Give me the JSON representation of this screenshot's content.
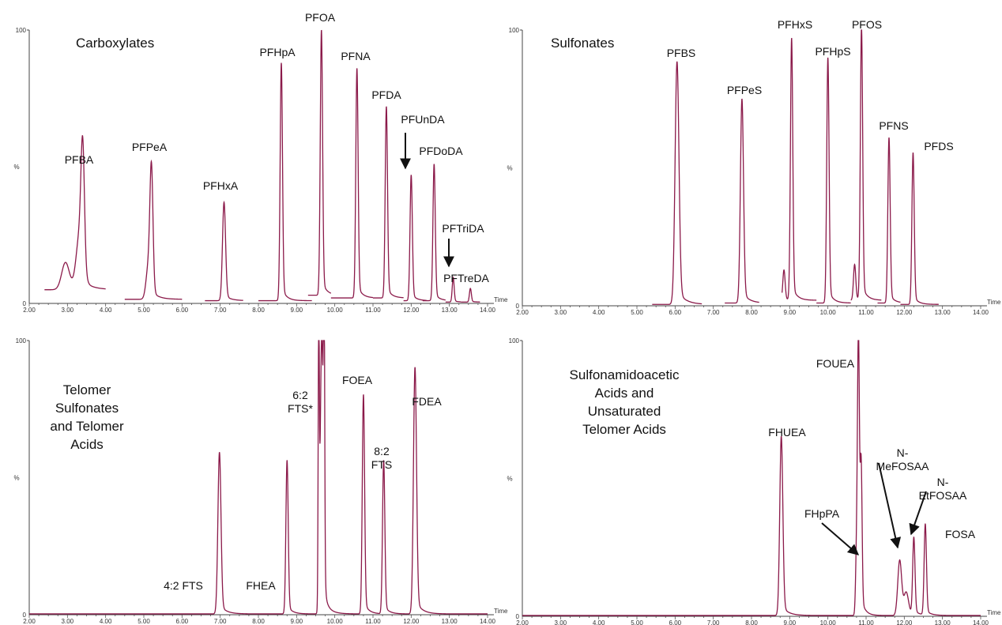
{
  "chart_data": [
    {
      "type": "line",
      "title": "Carboxylates",
      "xlabel": "Time",
      "ylabel": "%",
      "xlim": [
        2.0,
        14.0
      ],
      "ylim": [
        0,
        100
      ],
      "xticks": [
        "2.00",
        "3.00",
        "4.00",
        "5.00",
        "6.00",
        "7.00",
        "8.00",
        "9.00",
        "10.00",
        "11.00",
        "12.00",
        "13.00",
        "14.00"
      ],
      "yticks": [
        "0",
        "100"
      ],
      "line_color": "#8b1a4a",
      "segments": [
        {
          "start": 2.4,
          "end": 4.0,
          "baseline": 5,
          "peaks": [
            {
              "t": 2.95,
              "h": 10,
              "w": 0.1
            },
            {
              "t": 3.32,
              "h": 20,
              "w": 0.09
            },
            {
              "t": 3.4,
              "h": 42,
              "w": 0.045
            }
          ]
        },
        {
          "start": 4.5,
          "end": 6.0,
          "baseline": 1.5,
          "peaks": [
            {
              "t": 5.12,
              "h": 12,
              "w": 0.06
            },
            {
              "t": 5.2,
              "h": 45,
              "w": 0.04
            }
          ]
        },
        {
          "start": 6.6,
          "end": 7.6,
          "baseline": 1,
          "peaks": [
            {
              "t": 7.1,
              "h": 36,
              "w": 0.04
            }
          ]
        },
        {
          "start": 8.0,
          "end": 9.4,
          "baseline": 1,
          "peaks": [
            {
              "t": 8.6,
              "h": 87,
              "w": 0.03
            }
          ]
        },
        {
          "start": 9.3,
          "end": 9.9,
          "baseline": 3,
          "peaks": [
            {
              "t": 9.65,
              "h": 97,
              "w": 0.03
            }
          ]
        },
        {
          "start": 9.9,
          "end": 11.0,
          "baseline": 2,
          "peaks": [
            {
              "t": 10.58,
              "h": 84,
              "w": 0.03
            }
          ]
        },
        {
          "start": 11.0,
          "end": 11.8,
          "baseline": 2,
          "peaks": [
            {
              "t": 11.35,
              "h": 70,
              "w": 0.03
            }
          ]
        },
        {
          "start": 11.8,
          "end": 12.4,
          "baseline": 1,
          "peaks": [
            {
              "t": 12.0,
              "h": 46,
              "w": 0.03
            }
          ]
        },
        {
          "start": 12.3,
          "end": 12.9,
          "baseline": 1,
          "peaks": [
            {
              "t": 12.6,
              "h": 50,
              "w": 0.03
            }
          ]
        },
        {
          "start": 12.9,
          "end": 13.3,
          "baseline": 0.5,
          "peaks": [
            {
              "t": 13.1,
              "h": 9,
              "w": 0.025
            }
          ]
        },
        {
          "start": 13.3,
          "end": 13.8,
          "baseline": 0.5,
          "peaks": [
            {
              "t": 13.55,
              "h": 5,
              "w": 0.025
            }
          ]
        }
      ],
      "annotations": [
        {
          "text": "PFBA",
          "t": 3.4,
          "h": 42
        },
        {
          "text": "PFPeA",
          "t": 5.2,
          "h": 45
        },
        {
          "text": "PFHxA",
          "t": 7.1,
          "h": 36
        },
        {
          "text": "PFHpA",
          "t": 8.6,
          "h": 87
        },
        {
          "text": "PFOA",
          "t": 9.65,
          "h": 97
        },
        {
          "text": "PFNA",
          "t": 10.58,
          "h": 84
        },
        {
          "text": "PFDA",
          "t": 11.35,
          "h": 70
        },
        {
          "text": "PFUnDA",
          "t": 12.0,
          "h": 46
        },
        {
          "text": "PFDoDA",
          "t": 12.6,
          "h": 50
        },
        {
          "text": "PFTriDA",
          "t": 13.1,
          "h": 9
        },
        {
          "text": "PFTreDA",
          "t": 13.55,
          "h": 5
        }
      ]
    },
    {
      "type": "line",
      "title": "Sulfonates",
      "xlabel": "Time",
      "ylabel": "%",
      "xlim": [
        2.0,
        14.0
      ],
      "ylim": [
        0,
        100
      ],
      "xticks": [
        "2.00",
        "3.00",
        "4.00",
        "5.00",
        "6.00",
        "7.00",
        "8.00",
        "9.00",
        "10.00",
        "11.00",
        "12.00",
        "13.00",
        "14.00"
      ],
      "yticks": [
        "0",
        "100"
      ],
      "line_color": "#8b1a4a",
      "segments": [
        {
          "start": 5.4,
          "end": 6.7,
          "baseline": 0.5,
          "peaks": [
            {
              "t": 6.05,
              "h": 88,
              "w": 0.05
            }
          ]
        },
        {
          "start": 7.3,
          "end": 8.2,
          "baseline": 1,
          "peaks": [
            {
              "t": 7.75,
              "h": 74,
              "w": 0.04
            }
          ]
        },
        {
          "start": 8.8,
          "end": 9.7,
          "baseline": 2,
          "peaks": [
            {
              "t": 8.85,
              "h": 11,
              "w": 0.03
            },
            {
              "t": 9.05,
              "h": 95,
              "w": 0.03
            }
          ]
        },
        {
          "start": 9.7,
          "end": 10.6,
          "baseline": 1,
          "peaks": [
            {
              "t": 10.0,
              "h": 89,
              "w": 0.03
            }
          ]
        },
        {
          "start": 10.6,
          "end": 11.4,
          "baseline": 2,
          "peaks": [
            {
              "t": 10.7,
              "h": 13,
              "w": 0.03
            },
            {
              "t": 10.88,
              "h": 99,
              "w": 0.03
            }
          ]
        },
        {
          "start": 11.3,
          "end": 11.9,
          "baseline": 1,
          "peaks": [
            {
              "t": 11.6,
              "h": 60,
              "w": 0.03
            }
          ]
        },
        {
          "start": 11.9,
          "end": 12.9,
          "baseline": 0.5,
          "peaks": [
            {
              "t": 12.23,
              "h": 55,
              "w": 0.03
            }
          ]
        }
      ],
      "annotations": [
        {
          "text": "PFBS",
          "t": 6.05,
          "h": 88
        },
        {
          "text": "PFPeS",
          "t": 7.75,
          "h": 74
        },
        {
          "text": "PFHxS",
          "t": 9.05,
          "h": 95
        },
        {
          "text": "PFHpS",
          "t": 10.0,
          "h": 89
        },
        {
          "text": "PFOS",
          "t": 10.88,
          "h": 99
        },
        {
          "text": "PFNS",
          "t": 11.6,
          "h": 60
        },
        {
          "text": "PFDS",
          "t": 12.23,
          "h": 55
        }
      ]
    },
    {
      "type": "line",
      "title": [
        "Telomer",
        "Sulfonates",
        "and Telomer",
        "Acids"
      ],
      "xlabel": "Time",
      "ylabel": "%",
      "xlim": [
        2.0,
        14.0
      ],
      "ylim": [
        0,
        100
      ],
      "xticks": [
        "2.00",
        "3.00",
        "4.00",
        "5.00",
        "6.00",
        "7.00",
        "8.00",
        "9.00",
        "10.00",
        "11.00",
        "12.00",
        "13.00",
        "14.00"
      ],
      "yticks": [
        "0",
        "100"
      ],
      "line_color": "#8b1a4a",
      "segments": [
        {
          "start": 2.0,
          "end": 14.0,
          "baseline": 0.3,
          "peaks": [
            {
              "t": 6.98,
              "h": 59,
              "w": 0.04
            },
            {
              "t": 8.75,
              "h": 56,
              "w": 0.03
            },
            {
              "t": 9.58,
              "h": 100,
              "w": 0.015
            },
            {
              "t": 9.72,
              "h": 100,
              "w": 0.015
            },
            {
              "t": 9.66,
              "h": 100,
              "w": 0.04
            },
            {
              "t": 10.75,
              "h": 80,
              "w": 0.03
            },
            {
              "t": 11.28,
              "h": 56,
              "w": 0.03
            },
            {
              "t": 12.1,
              "h": 90,
              "w": 0.04
            }
          ]
        }
      ],
      "annotations": [
        {
          "text": "4:2 FTS",
          "t": 6.98,
          "h": 59
        },
        {
          "text": "FHEA",
          "t": 8.75,
          "h": 56
        },
        {
          "text": "6:2 FTS*",
          "t": 9.65,
          "h": 100
        },
        {
          "text": "FOEA",
          "t": 10.75,
          "h": 80
        },
        {
          "text": "8:2 FTS",
          "t": 11.28,
          "h": 56
        },
        {
          "text": "FDEA",
          "t": 12.1,
          "h": 90
        }
      ]
    },
    {
      "type": "line",
      "title": [
        "Sulfonamidoacetic",
        "Acids and",
        "Unsaturated",
        "Telomer Acids"
      ],
      "xlabel": "Time",
      "ylabel": "%",
      "xlim": [
        2.0,
        14.0
      ],
      "ylim": [
        0,
        100
      ],
      "xticks": [
        "2.00",
        "3.00",
        "4.00",
        "5.00",
        "6.00",
        "7.00",
        "8.00",
        "9.00",
        "10.00",
        "11.00",
        "12.00",
        "13.00",
        "14.00"
      ],
      "yticks": [
        "0",
        "100"
      ],
      "line_color": "#8b1a4a",
      "segments": [
        {
          "start": 2.0,
          "end": 14.0,
          "baseline": 0.3,
          "peaks": [
            {
              "t": 8.78,
              "h": 65,
              "w": 0.04
            },
            {
              "t": 10.75,
              "h": 22,
              "w": 0.025
            },
            {
              "t": 10.8,
              "h": 100,
              "w": 0.025
            },
            {
              "t": 10.87,
              "h": 53,
              "w": 0.025
            },
            {
              "t": 11.88,
              "h": 20,
              "w": 0.05
            },
            {
              "t": 12.05,
              "h": 8,
              "w": 0.06
            },
            {
              "t": 12.25,
              "h": 28,
              "w": 0.03
            },
            {
              "t": 12.55,
              "h": 33,
              "w": 0.03
            }
          ]
        }
      ],
      "annotations": [
        {
          "text": "FHUEA",
          "t": 8.78,
          "h": 65
        },
        {
          "text": "FOUEA",
          "t": 10.8,
          "h": 100
        },
        {
          "text": "FHpPA",
          "t": 10.75,
          "h": 22
        },
        {
          "text": "N-MeFOSAA",
          "t": 11.88,
          "h": 20
        },
        {
          "text": "N-EtFOSAA",
          "t": 12.25,
          "h": 28
        },
        {
          "text": "FOSA",
          "t": 12.55,
          "h": 33
        }
      ]
    }
  ]
}
